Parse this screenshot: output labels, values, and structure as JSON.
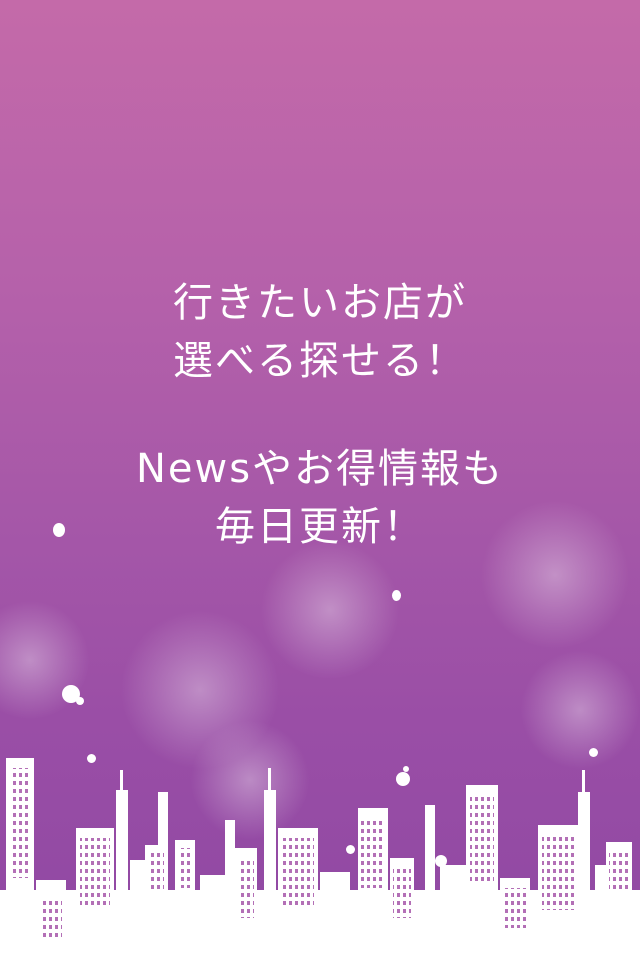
{
  "splash": {
    "line1": "行きたいお店が",
    "line2": "選べる探せる！",
    "line3": "Newsやお得情報も",
    "line4": "毎日更新！"
  },
  "colors": {
    "top": "#c46aa9",
    "bottom": "#8f48a3",
    "text": "#ffffff"
  }
}
